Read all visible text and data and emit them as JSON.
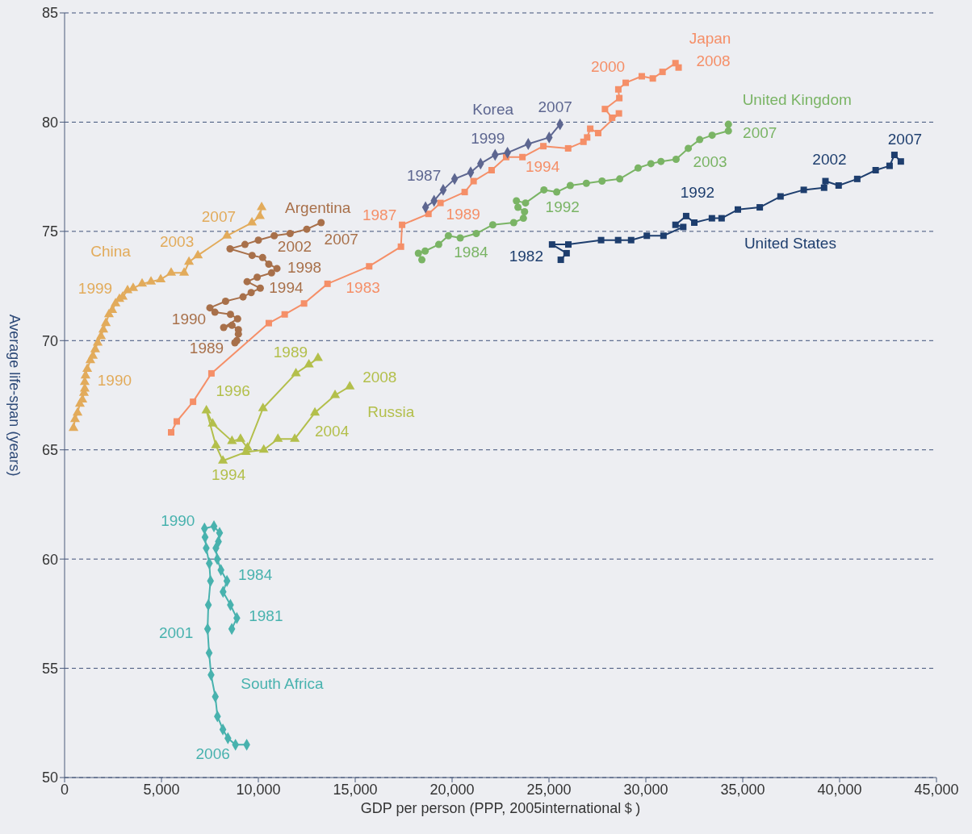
{
  "chart_data": {
    "type": "line",
    "xlabel": "GDP per person (PPP, 2005international＄)",
    "ylabel": "Average life-span (years)",
    "xlim": [
      0,
      45000
    ],
    "ylim": [
      50,
      85
    ],
    "xticks": [
      0,
      {
        "value": 5000,
        "label": "5,000"
      },
      {
        "value": 10000,
        "label": "10,000"
      },
      {
        "value": 15000,
        "label": "15,000"
      },
      {
        "value": 20000,
        "label": "20,000"
      },
      {
        "value": 25000,
        "label": "25,000"
      },
      {
        "value": 30000,
        "label": "30,000"
      },
      {
        "value": 35000,
        "label": "35,000"
      },
      {
        "value": 40000,
        "label": "40,000"
      },
      {
        "value": 45000,
        "label": "45,000"
      }
    ],
    "yticks": [
      50,
      55,
      60,
      65,
      70,
      75,
      80,
      85
    ],
    "grid": "y",
    "legend": false,
    "line_style": "solid",
    "annotations": [
      {
        "text": "1990",
        "x": 1080,
        "y": 68.4
      },
      {
        "text": "1999",
        "x": 3000,
        "y": 72.0
      },
      {
        "text": "2003",
        "x": 6880,
        "y": 73.9
      },
      {
        "text": "2007",
        "x": 10080,
        "y": 75.7
      },
      {
        "text": "1989",
        "x": 8790,
        "y": 69.9
      },
      {
        "text": "1990",
        "x": 7500,
        "y": 71.5
      },
      {
        "text": "1994",
        "x": 10100,
        "y": 72.4
      },
      {
        "text": "1998",
        "x": 10960,
        "y": 73.3
      },
      {
        "text": "2002",
        "x": 10000,
        "y": 74.6
      },
      {
        "text": "2007",
        "x": 13240,
        "y": 75.4
      },
      {
        "text": "1983",
        "x": 13570,
        "y": 72.6
      },
      {
        "text": "1987",
        "x": 17420,
        "y": 75.3
      },
      {
        "text": "1989",
        "x": 18780,
        "y": 75.8
      },
      {
        "text": "1994",
        "x": 23630,
        "y": 78.4
      },
      {
        "text": "2000",
        "x": 28960,
        "y": 81.8
      },
      {
        "text": "2008",
        "x": 31690,
        "y": 82.5
      },
      {
        "text": "1987",
        "x": 18630,
        "y": 76.1
      },
      {
        "text": "1999",
        "x": 22220,
        "y": 78.5
      },
      {
        "text": "2007",
        "x": 25570,
        "y": 79.9
      },
      {
        "text": "1984",
        "x": 19810,
        "y": 74.8
      },
      {
        "text": "1992",
        "x": 24740,
        "y": 76.9
      },
      {
        "text": "2003",
        "x": 32190,
        "y": 78.8
      },
      {
        "text": "2007",
        "x": 34260,
        "y": 79.9
      },
      {
        "text": "1982",
        "x": 25160,
        "y": 74.4
      },
      {
        "text": "1992",
        "x": 32080,
        "y": 75.7
      },
      {
        "text": "2002",
        "x": 39270,
        "y": 77.3
      },
      {
        "text": "2007",
        "x": 42830,
        "y": 78.5
      },
      {
        "text": "1989",
        "x": 13080,
        "y": 69.2
      },
      {
        "text": "1996",
        "x": 7320,
        "y": 66.8
      },
      {
        "text": "1994",
        "x": 8170,
        "y": 64.5
      },
      {
        "text": "2004",
        "x": 12920,
        "y": 66.7
      },
      {
        "text": "2008",
        "x": 14720,
        "y": 67.9
      },
      {
        "text": "1981",
        "x": 8890,
        "y": 57.3
      },
      {
        "text": "1984",
        "x": 8380,
        "y": 59.0
      },
      {
        "text": "1990",
        "x": 7220,
        "y": 61.4
      },
      {
        "text": "2001",
        "x": 7380,
        "y": 56.8
      },
      {
        "text": "2006",
        "x": 8820,
        "y": 51.5
      }
    ],
    "series": [
      {
        "name": "China",
        "color": "#e2ab5b",
        "marker": "triangle",
        "x": [
          460,
          540,
          670,
          790,
          920,
          1000,
          1040,
          1040,
          1080,
          1170,
          1330,
          1460,
          1580,
          1710,
          1880,
          2000,
          2130,
          2290,
          2460,
          2630,
          2830,
          3000,
          3250,
          3540,
          4000,
          4460,
          4960,
          5500,
          6170,
          6420,
          6880,
          8380,
          9670,
          10080,
          10170
        ],
        "values": [
          66.0,
          66.4,
          66.7,
          67.1,
          67.3,
          67.6,
          67.8,
          68.1,
          68.4,
          68.7,
          69.1,
          69.3,
          69.6,
          69.9,
          70.2,
          70.5,
          70.8,
          71.2,
          71.4,
          71.7,
          71.9,
          72.0,
          72.3,
          72.4,
          72.6,
          72.7,
          72.8,
          73.1,
          73.1,
          73.6,
          73.9,
          74.8,
          75.4,
          75.7,
          76.1
        ]
      },
      {
        "name": "Argentina",
        "color": "#a8704a",
        "marker": "circle",
        "x": [
          8790,
          8890,
          8970,
          8970,
          8640,
          8210,
          8930,
          8560,
          7760,
          7500,
          8310,
          9210,
          9630,
          10100,
          9420,
          9940,
          10680,
          10960,
          10540,
          10220,
          9680,
          8540,
          9310,
          10000,
          10820,
          11640,
          12500,
          13240
        ],
        "values": [
          69.9,
          70.0,
          70.3,
          70.5,
          70.7,
          70.6,
          71.0,
          71.2,
          71.3,
          71.5,
          71.8,
          72.0,
          72.2,
          72.4,
          72.7,
          72.9,
          73.1,
          73.3,
          73.5,
          73.8,
          73.9,
          74.2,
          74.4,
          74.6,
          74.8,
          74.9,
          75.1,
          75.4
        ]
      },
      {
        "name": "Japan",
        "color": "#f58f68",
        "marker": "square",
        "x": [
          5500,
          5790,
          6630,
          7580,
          10540,
          11360,
          12360,
          13570,
          15720,
          17360,
          17420,
          18780,
          19400,
          20650,
          21110,
          22040,
          22790,
          23630,
          24710,
          25990,
          26780,
          26970,
          27130,
          27540,
          28610,
          28260,
          27890,
          28630,
          28580,
          28960,
          29790,
          30360,
          30860,
          31530,
          31690
        ],
        "values": [
          65.8,
          66.3,
          67.2,
          68.5,
          70.8,
          71.2,
          71.7,
          72.6,
          73.4,
          74.3,
          75.3,
          75.8,
          76.3,
          76.8,
          77.3,
          77.8,
          78.4,
          78.4,
          78.9,
          78.8,
          79.1,
          79.3,
          79.7,
          79.5,
          80.4,
          80.2,
          80.6,
          81.1,
          81.5,
          81.8,
          82.1,
          82.0,
          82.3,
          82.7,
          82.5
        ]
      },
      {
        "name": "Korea",
        "color": "#5d6690",
        "marker": "diamond",
        "x": [
          18630,
          19070,
          19540,
          20130,
          20960,
          21470,
          22220,
          22860,
          23930,
          25010,
          25570
        ],
        "values": [
          76.1,
          76.4,
          76.9,
          77.4,
          77.7,
          78.1,
          78.5,
          78.6,
          79.0,
          79.3,
          79.9
        ]
      },
      {
        "name": "United Kingdom",
        "color": "#7ab465",
        "marker": "circle",
        "x": [
          18440,
          18260,
          18610,
          19310,
          19810,
          20420,
          21250,
          22100,
          23180,
          23680,
          23740,
          23400,
          23320,
          23790,
          24740,
          25400,
          26100,
          26930,
          27740,
          28650,
          29600,
          30260,
          30780,
          31560,
          32190,
          32780,
          33420,
          34260,
          34260
        ],
        "values": [
          73.7,
          74.0,
          74.1,
          74.4,
          74.8,
          74.7,
          74.9,
          75.3,
          75.4,
          75.6,
          75.9,
          76.1,
          76.4,
          76.3,
          76.9,
          76.8,
          77.1,
          77.2,
          77.3,
          77.4,
          77.9,
          78.1,
          78.2,
          78.3,
          78.8,
          79.2,
          79.4,
          79.6,
          79.9
        ]
      },
      {
        "name": "United States",
        "color": "#1e3e6e",
        "marker": "square",
        "x": [
          25610,
          25910,
          25160,
          26000,
          27690,
          28570,
          29240,
          30050,
          30910,
          31930,
          31530,
          32080,
          32500,
          33410,
          33910,
          34750,
          35880,
          36950,
          38150,
          39200,
          39270,
          39950,
          40910,
          41860,
          42580,
          42830,
          43160
        ],
        "values": [
          73.7,
          74.0,
          74.4,
          74.4,
          74.6,
          74.6,
          74.6,
          74.8,
          74.8,
          75.2,
          75.3,
          75.7,
          75.4,
          75.6,
          75.6,
          76.0,
          76.1,
          76.6,
          76.9,
          77.0,
          77.3,
          77.1,
          77.4,
          77.8,
          78.0,
          78.5,
          78.2
        ]
      },
      {
        "name": "Russia",
        "color": "#b3bf4b",
        "marker": "triangle",
        "x": [
          13080,
          12610,
          11940,
          10240,
          9440,
          9080,
          8640,
          7640,
          7320,
          7810,
          8170,
          9360,
          10280,
          11010,
          11880,
          12920,
          13960,
          14720
        ],
        "values": [
          69.2,
          68.9,
          68.5,
          66.9,
          65.1,
          65.5,
          65.4,
          66.2,
          66.8,
          65.2,
          64.5,
          64.9,
          65.0,
          65.5,
          65.5,
          66.7,
          67.5,
          67.9
        ]
      },
      {
        "name": "South Africa",
        "color": "#48b2ae",
        "marker": "diamond",
        "x": [
          8630,
          8890,
          8560,
          8180,
          8380,
          8070,
          7880,
          7810,
          7940,
          8000,
          7710,
          7220,
          7250,
          7310,
          7470,
          7530,
          7420,
          7380,
          7460,
          7560,
          7780,
          7890,
          8170,
          8430,
          8820,
          9400
        ],
        "values": [
          56.8,
          57.3,
          57.9,
          58.5,
          59.0,
          59.5,
          60.0,
          60.5,
          60.8,
          61.2,
          61.5,
          61.4,
          61.0,
          60.5,
          59.8,
          59.0,
          57.9,
          56.8,
          55.7,
          54.7,
          53.7,
          52.8,
          52.2,
          51.8,
          51.5,
          51.5
        ]
      }
    ]
  }
}
